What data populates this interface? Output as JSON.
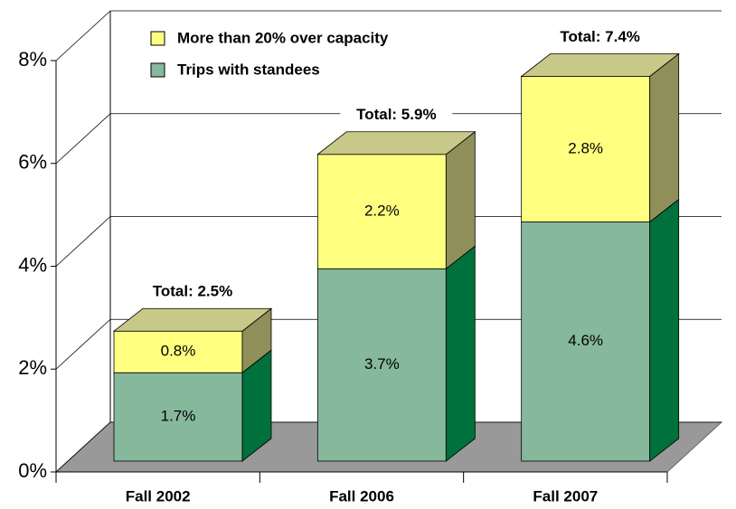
{
  "chart_data": {
    "type": "bar3d_stacked",
    "categories": [
      "Fall 2002",
      "Fall 2006",
      "Fall 2007"
    ],
    "series": [
      {
        "name": "Trips with standees",
        "color": "#86b89c",
        "side_color": "#00703c",
        "values": [
          1.7,
          3.7,
          4.6
        ],
        "value_labels": [
          "1.7%",
          "3.7%",
          "4.6%"
        ]
      },
      {
        "name": "More than 20% over capacity",
        "color": "#ffff80",
        "side_color": "#8f8f5a",
        "values": [
          0.8,
          2.2,
          2.8
        ],
        "value_labels": [
          "0.8%",
          "2.2%",
          "2.8%"
        ]
      }
    ],
    "annotations": [
      "Total: 2.5%",
      "Total: 5.9%",
      "Total: 7.4%"
    ],
    "ylim": [
      0,
      8
    ],
    "yticks": [
      {
        "value": 0,
        "label": "0%"
      },
      {
        "value": 2,
        "label": "2%"
      },
      {
        "value": 4,
        "label": "4%"
      },
      {
        "value": 6,
        "label": "6%"
      },
      {
        "value": 8,
        "label": "8%"
      }
    ],
    "grid": true
  }
}
